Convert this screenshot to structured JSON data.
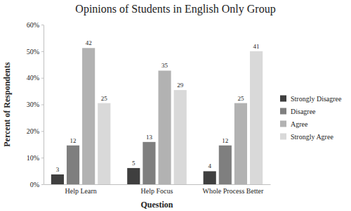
{
  "chart_data": {
    "type": "bar",
    "title": "Opinions of Students in English Only Group",
    "x_label": "Question",
    "y_label": "Percent of Respondents",
    "categories": [
      "Help Learn",
      "Help Focus",
      "Whole Process Better"
    ],
    "series": [
      {
        "name": "Strongly Disagree",
        "color": "#3f3f3f",
        "values": [
          3.7,
          6.1,
          4.9
        ],
        "counts": [
          3,
          5,
          4
        ]
      },
      {
        "name": "Disagree",
        "color": "#7f7f7f",
        "values": [
          14.6,
          15.9,
          14.6
        ],
        "counts": [
          12,
          13,
          12
        ]
      },
      {
        "name": "Agree",
        "color": "#b2b2b2",
        "values": [
          51.2,
          42.7,
          30.5
        ],
        "counts": [
          42,
          35,
          25
        ]
      },
      {
        "name": "Strongly Agree",
        "color": "#d9d9d9",
        "values": [
          30.5,
          35.4,
          50.0
        ],
        "counts": [
          25,
          29,
          41
        ]
      }
    ],
    "ylim": [
      0,
      60
    ],
    "yticks": [
      {
        "value": 0,
        "label": "0%"
      },
      {
        "value": 10,
        "label": "10%"
      },
      {
        "value": 20,
        "label": "20%"
      },
      {
        "value": 30,
        "label": "30%"
      },
      {
        "value": 40,
        "label": "40%"
      },
      {
        "value": 50,
        "label": "50%"
      },
      {
        "value": 60,
        "label": "60%"
      }
    ],
    "grid": false,
    "legend": "right"
  }
}
